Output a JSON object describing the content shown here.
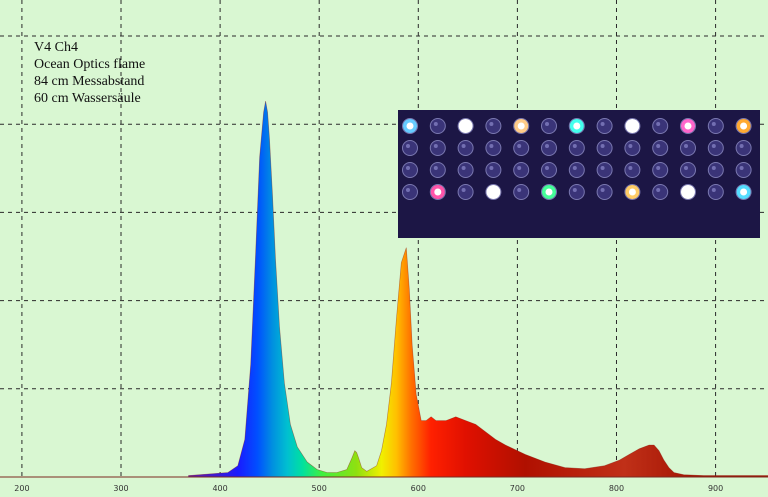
{
  "chart_data": {
    "type": "area",
    "title": "",
    "xlabel": "",
    "ylabel": "",
    "xlim": [
      190,
      965
    ],
    "ylim": [
      0,
      1
    ],
    "grid": true,
    "x_ticks": [
      200,
      300,
      400,
      500,
      600,
      700,
      800,
      900
    ],
    "annotation_lines": [
      "V4 Ch4",
      "Ocean Optics flame",
      "84 cm Messabstand",
      "60 cm Wassersäule"
    ],
    "inset_photo": "led-array-photo",
    "series": [
      {
        "x": [
          380,
          400,
          420,
          430,
          437,
          443,
          448,
          452,
          456,
          458,
          460,
          462,
          465,
          468,
          472,
          477,
          483,
          490,
          500,
          510,
          520,
          530,
          540,
          545,
          548,
          550,
          552,
          555,
          560,
          570,
          575,
          580,
          585,
          590,
          595,
          600,
          603,
          606,
          610,
          615,
          620,
          625,
          630,
          640,
          650,
          660,
          670,
          680,
          690,
          700,
          720,
          740,
          760,
          780,
          800,
          815,
          825,
          835,
          845,
          850,
          855,
          860,
          865,
          870,
          880,
          900,
          965
        ],
        "values": [
          0.004,
          0.008,
          0.012,
          0.03,
          0.1,
          0.3,
          0.6,
          0.85,
          0.97,
          1.0,
          0.97,
          0.9,
          0.75,
          0.58,
          0.4,
          0.25,
          0.14,
          0.08,
          0.04,
          0.02,
          0.012,
          0.012,
          0.02,
          0.05,
          0.07,
          0.065,
          0.05,
          0.025,
          0.015,
          0.03,
          0.07,
          0.14,
          0.25,
          0.42,
          0.57,
          0.61,
          0.5,
          0.35,
          0.22,
          0.15,
          0.15,
          0.16,
          0.15,
          0.15,
          0.16,
          0.15,
          0.14,
          0.12,
          0.1,
          0.085,
          0.06,
          0.04,
          0.025,
          0.022,
          0.03,
          0.045,
          0.06,
          0.075,
          0.085,
          0.085,
          0.07,
          0.045,
          0.025,
          0.012,
          0.006,
          0.004,
          0.004
        ]
      }
    ]
  }
}
